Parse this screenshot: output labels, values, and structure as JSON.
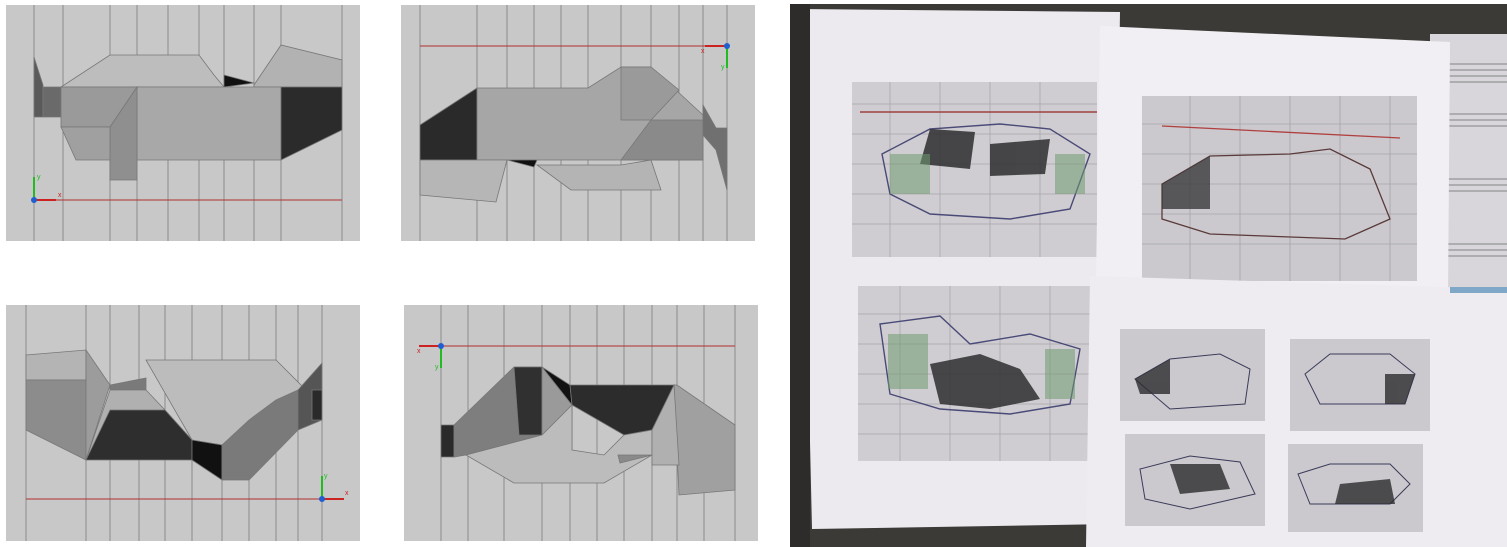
{
  "views": [
    {
      "id": "top-left",
      "axes": {
        "x_label": "x",
        "y_label": "y"
      }
    },
    {
      "id": "top-right",
      "axes": {
        "x_label": "x",
        "y_label": "y"
      }
    },
    {
      "id": "bottom-left",
      "axes": {
        "x_label": "x",
        "y_label": "y"
      }
    },
    {
      "id": "bottom-right",
      "axes": {
        "x_label": "x",
        "y_label": "y"
      }
    }
  ],
  "colors": {
    "viewport_bg": "#c8c8c8",
    "grid_line": "#8c8c8c",
    "dark_face": "#2e2e2e",
    "axis_x": "#cc2222",
    "axis_y": "#22bb22",
    "axis_origin": "#1f5fd0",
    "photo_bg": "#3b3a37",
    "paper": "#efedf2"
  }
}
